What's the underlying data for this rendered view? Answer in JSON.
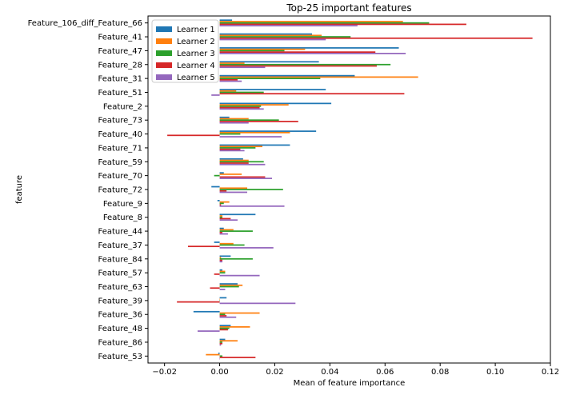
{
  "chart_data": {
    "type": "bar",
    "orientation": "horizontal",
    "title": "Top-25 important features",
    "xlabel": "Mean of feature importance",
    "ylabel": "feature",
    "xlim": [
      -0.026,
      0.12
    ],
    "xticks": [
      -0.02,
      0.0,
      0.02,
      0.04,
      0.06,
      0.08,
      0.1,
      0.12
    ],
    "xtick_labels": [
      "−0.02",
      "0.00",
      "0.02",
      "0.04",
      "0.06",
      "0.08",
      "0.10",
      "0.12"
    ],
    "grid": false,
    "legend_position": "top-left",
    "categories": [
      "Feature_106_diff_Feature_66",
      "Feature_41",
      "Feature_47",
      "Feature_28",
      "Feature_31",
      "Feature_51",
      "Feature_2",
      "Feature_73",
      "Feature_40",
      "Feature_71",
      "Feature_59",
      "Feature_70",
      "Feature_72",
      "Feature_9",
      "Feature_8",
      "Feature_44",
      "Feature_37",
      "Feature_84",
      "Feature_57",
      "Feature_63",
      "Feature_39",
      "Feature_36",
      "Feature_48",
      "Feature_86",
      "Feature_53"
    ],
    "series": [
      {
        "name": "Learner 1",
        "color": "#1f77b4",
        "values": [
          0.0045,
          0.0335,
          0.065,
          0.036,
          0.049,
          0.0385,
          0.0405,
          0.0035,
          0.035,
          0.0255,
          0.0085,
          0.0015,
          -0.003,
          -0.0008,
          0.013,
          0.0015,
          -0.002,
          0.004,
          0.001,
          0.0065,
          0.0025,
          -0.0095,
          0.004,
          0.002,
          -0.0005
        ]
      },
      {
        "name": "Learner 2",
        "color": "#ff7f0e",
        "values": [
          0.0665,
          0.037,
          0.031,
          0.009,
          0.072,
          0.006,
          0.025,
          0.0105,
          0.0255,
          0.0155,
          0.0105,
          0.008,
          0.01,
          0.0035,
          0.001,
          0.005,
          0.005,
          0.0005,
          0.002,
          0.0083,
          0.0,
          0.0145,
          0.011,
          0.0065,
          -0.005
        ]
      },
      {
        "name": "Learner 3",
        "color": "#2ca02c",
        "values": [
          0.076,
          0.0475,
          0.0235,
          0.062,
          0.0365,
          0.016,
          0.015,
          0.0215,
          0.0075,
          0.013,
          0.016,
          -0.002,
          0.023,
          0.0015,
          0.001,
          0.012,
          0.009,
          0.012,
          0.002,
          0.007,
          0.0,
          0.002,
          0.0035,
          0.001,
          0.001
        ]
      },
      {
        "name": "Learner 4",
        "color": "#d62728",
        "values": [
          0.0895,
          0.1135,
          0.0565,
          0.057,
          0.0065,
          0.067,
          0.0145,
          0.0285,
          -0.019,
          0.0075,
          0.0105,
          0.0165,
          0.0025,
          0.0005,
          0.004,
          0.001,
          -0.0115,
          0.001,
          -0.002,
          -0.0035,
          -0.0155,
          0.0025,
          0.003,
          0.001,
          0.013
        ]
      },
      {
        "name": "Learner 5",
        "color": "#9467bd",
        "values": [
          0.05,
          0.0385,
          0.0675,
          0.0165,
          0.008,
          -0.003,
          0.016,
          0.0105,
          0.0225,
          0.009,
          0.0165,
          0.019,
          0.01,
          0.0235,
          0.0065,
          0.003,
          0.0195,
          0.001,
          0.0145,
          0.002,
          0.0275,
          0.006,
          -0.008,
          0.0005,
          0.0
        ]
      }
    ]
  }
}
